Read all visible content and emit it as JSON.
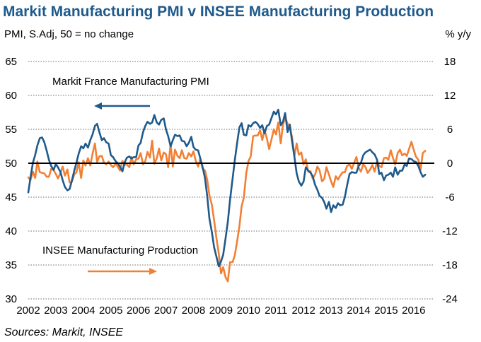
{
  "chart_data": {
    "type": "line",
    "title": "Markit Manufacturing PMI v INSEE Manufacturing Production",
    "left_axis_label": "PMI, S.Adj, 50 = no change",
    "right_axis_label": "% y/y",
    "source": "Sources: Markit, INSEE",
    "x_ticks": [
      "2002",
      "2003",
      "2004",
      "2005",
      "2006",
      "2007",
      "2008",
      "2009",
      "2010",
      "2011",
      "2012",
      "2013",
      "2014",
      "2015",
      "2016"
    ],
    "x_range": [
      2002.0,
      2016.75
    ],
    "y_left": {
      "range": [
        30,
        65
      ],
      "ticks": [
        "30",
        "35",
        "40",
        "45",
        "50",
        "55",
        "60",
        "65"
      ]
    },
    "y_right": {
      "range": [
        -24,
        18
      ],
      "ticks": [
        "-24",
        "-18",
        "-12",
        "-6",
        "0",
        "6",
        "12",
        "18"
      ]
    },
    "reference_line": {
      "axis": "left",
      "value": 50
    },
    "grid": "horizontal-dotted",
    "series": [
      {
        "name": "Markit France Manufacturing PMI",
        "axis": "left",
        "color": "#1f5a8c",
        "x": [
          2002.0,
          2002.08,
          2002.17,
          2002.25,
          2002.33,
          2002.42,
          2002.5,
          2002.58,
          2002.67,
          2002.75,
          2002.83,
          2002.92,
          2003.0,
          2003.08,
          2003.17,
          2003.25,
          2003.33,
          2003.42,
          2003.5,
          2003.58,
          2003.67,
          2003.75,
          2003.83,
          2003.92,
          2004.0,
          2004.08,
          2004.17,
          2004.25,
          2004.33,
          2004.42,
          2004.5,
          2004.58,
          2004.67,
          2004.75,
          2004.83,
          2004.92,
          2005.0,
          2005.08,
          2005.17,
          2005.25,
          2005.33,
          2005.42,
          2005.5,
          2005.58,
          2005.67,
          2005.75,
          2005.83,
          2005.92,
          2006.0,
          2006.08,
          2006.17,
          2006.25,
          2006.33,
          2006.42,
          2006.5,
          2006.58,
          2006.67,
          2006.75,
          2006.83,
          2006.92,
          2007.0,
          2007.08,
          2007.17,
          2007.25,
          2007.33,
          2007.42,
          2007.5,
          2007.58,
          2007.67,
          2007.75,
          2007.83,
          2007.92,
          2008.0,
          2008.08,
          2008.17,
          2008.25,
          2008.33,
          2008.42,
          2008.5,
          2008.58,
          2008.67,
          2008.75,
          2008.83,
          2008.92,
          2009.0,
          2009.08,
          2009.17,
          2009.25,
          2009.33,
          2009.42,
          2009.5,
          2009.58,
          2009.67,
          2009.75,
          2009.83,
          2009.92,
          2010.0,
          2010.08,
          2010.17,
          2010.25,
          2010.33,
          2010.42,
          2010.5,
          2010.58,
          2010.67,
          2010.75,
          2010.83,
          2010.92,
          2011.0,
          2011.08,
          2011.17,
          2011.25,
          2011.33,
          2011.42,
          2011.5,
          2011.58,
          2011.67,
          2011.75,
          2011.83,
          2011.92,
          2012.0,
          2012.08,
          2012.17,
          2012.25,
          2012.33,
          2012.42,
          2012.5,
          2012.58,
          2012.67,
          2012.75,
          2012.83,
          2012.92,
          2013.0,
          2013.08,
          2013.17,
          2013.25,
          2013.33,
          2013.42,
          2013.5,
          2013.58,
          2013.67,
          2013.75,
          2013.83,
          2013.92,
          2014.0,
          2014.08,
          2014.17,
          2014.25,
          2014.33,
          2014.42,
          2014.5,
          2014.58,
          2014.67,
          2014.75,
          2014.83,
          2014.92,
          2015.0,
          2015.08,
          2015.17,
          2015.25,
          2015.33,
          2015.42,
          2015.5,
          2015.58,
          2015.67,
          2015.75,
          2015.83,
          2015.92,
          2016.0,
          2016.08,
          2016.17,
          2016.25,
          2016.33,
          2016.42
        ],
        "values": [
          45.7,
          47.9,
          50.1,
          51.2,
          52.6,
          53.7,
          53.8,
          53.1,
          51.8,
          50.5,
          49.6,
          49.0,
          49.9,
          49.4,
          48.7,
          47.5,
          46.5,
          46.0,
          46.2,
          47.4,
          48.9,
          50.1,
          51.4,
          52.5,
          52.2,
          52.9,
          52.3,
          53.4,
          54.2,
          55.5,
          55.8,
          54.6,
          53.4,
          53.7,
          53.1,
          52.9,
          51.2,
          50.9,
          50.3,
          50.0,
          49.5,
          48.8,
          50.1,
          50.8,
          51.0,
          50.7,
          50.9,
          50.9,
          52.6,
          53.0,
          54.6,
          55.5,
          56.1,
          55.8,
          56.0,
          57.1,
          56.0,
          55.7,
          56.4,
          56.6,
          55.0,
          54.0,
          52.5,
          53.4,
          54.2,
          54.0,
          54.1,
          53.3,
          53.2,
          52.5,
          53.0,
          53.9,
          52.4,
          52.0,
          51.9,
          50.7,
          49.5,
          47.8,
          45.2,
          41.8,
          39.8,
          37.6,
          36.3,
          34.8,
          35.5,
          36.5,
          39.0,
          41.4,
          44.6,
          47.7,
          50.4,
          52.8,
          55.3,
          55.9,
          54.2,
          54.1,
          55.6,
          55.4,
          55.9,
          56.1,
          55.8,
          55.2,
          55.6,
          54.4,
          55.5,
          55.7,
          56.6,
          57.6,
          57.2,
          57.9,
          55.6,
          56.1,
          57.4,
          54.6,
          55.7,
          53.3,
          50.9,
          48.5,
          47.3,
          46.7,
          47.3,
          49.4,
          48.9,
          48.6,
          48.1,
          46.8,
          46.1,
          45.2,
          44.9,
          44.3,
          43.3,
          44.3,
          42.8,
          43.8,
          43.4,
          44.1,
          43.8,
          43.9,
          45.0,
          46.7,
          48.4,
          48.7,
          48.6,
          48.6,
          49.6,
          50.0,
          51.2,
          51.6,
          51.8,
          52.0,
          51.6,
          51.3,
          50.5,
          48.4,
          48.6,
          47.5,
          48.2,
          48.3,
          48.6,
          48.0,
          49.4,
          48.3,
          48.9,
          48.9,
          49.8,
          49.6,
          50.7,
          50.6,
          50.3,
          50.2,
          49.6,
          48.7,
          48.0,
          48.3
        ]
      },
      {
        "name": "INSEE Manufacturing Production",
        "axis": "right",
        "color": "#f28034",
        "x": [
          2002.0,
          2002.08,
          2002.17,
          2002.25,
          2002.33,
          2002.42,
          2002.5,
          2002.58,
          2002.67,
          2002.75,
          2002.83,
          2002.92,
          2003.0,
          2003.08,
          2003.17,
          2003.25,
          2003.33,
          2003.42,
          2003.5,
          2003.58,
          2003.67,
          2003.75,
          2003.83,
          2003.92,
          2004.0,
          2004.08,
          2004.17,
          2004.25,
          2004.33,
          2004.42,
          2004.5,
          2004.58,
          2004.67,
          2004.75,
          2004.83,
          2004.92,
          2005.0,
          2005.08,
          2005.17,
          2005.25,
          2005.33,
          2005.42,
          2005.5,
          2005.58,
          2005.67,
          2005.75,
          2005.83,
          2005.92,
          2006.0,
          2006.08,
          2006.17,
          2006.25,
          2006.33,
          2006.42,
          2006.5,
          2006.58,
          2006.67,
          2006.75,
          2006.83,
          2006.92,
          2007.0,
          2007.08,
          2007.17,
          2007.25,
          2007.33,
          2007.42,
          2007.5,
          2007.58,
          2007.67,
          2007.75,
          2007.83,
          2007.92,
          2008.0,
          2008.08,
          2008.17,
          2008.25,
          2008.33,
          2008.42,
          2008.5,
          2008.58,
          2008.67,
          2008.75,
          2008.83,
          2008.92,
          2009.0,
          2009.08,
          2009.17,
          2009.25,
          2009.33,
          2009.42,
          2009.5,
          2009.58,
          2009.67,
          2009.75,
          2009.83,
          2009.92,
          2010.0,
          2010.08,
          2010.17,
          2010.25,
          2010.33,
          2010.42,
          2010.5,
          2010.58,
          2010.67,
          2010.75,
          2010.83,
          2010.92,
          2011.0,
          2011.08,
          2011.17,
          2011.25,
          2011.33,
          2011.42,
          2011.5,
          2011.58,
          2011.67,
          2011.75,
          2011.83,
          2011.92,
          2012.0,
          2012.08,
          2012.17,
          2012.25,
          2012.33,
          2012.42,
          2012.5,
          2012.58,
          2012.67,
          2012.75,
          2012.83,
          2012.92,
          2013.0,
          2013.08,
          2013.17,
          2013.25,
          2013.33,
          2013.42,
          2013.5,
          2013.58,
          2013.67,
          2013.75,
          2013.83,
          2013.92,
          2014.0,
          2014.08,
          2014.17,
          2014.25,
          2014.33,
          2014.42,
          2014.5,
          2014.58,
          2014.67,
          2014.75,
          2014.83,
          2014.92,
          2015.0,
          2015.08,
          2015.17,
          2015.25,
          2015.33,
          2015.42,
          2015.5,
          2015.58,
          2015.67,
          2015.75,
          2015.83,
          2015.92,
          2016.0,
          2016.08,
          2016.17,
          2016.25,
          2016.33,
          2016.42
        ],
        "values": [
          -2.5,
          -3.0,
          -1.5,
          -2.6,
          0.3,
          -1.6,
          -1.7,
          -1.8,
          -2.4,
          -2.4,
          -1.0,
          -1.2,
          -1.9,
          -2.7,
          -1.7,
          -0.6,
          -2.2,
          -1.1,
          -3.4,
          -3.3,
          -2.0,
          -1.6,
          0.2,
          -2.6,
          0.5,
          -0.4,
          0.9,
          -0.4,
          1.6,
          3.5,
          0.2,
          1.2,
          1.3,
          0.1,
          -0.2,
          0.3,
          -0.3,
          -0.7,
          -0.1,
          -0.6,
          -1.3,
          0.4,
          -0.3,
          -0.2,
          -0.7,
          1.1,
          -0.2,
          0.7,
          0.8,
          1.8,
          -0.2,
          0.4,
          2.0,
          1.0,
          4.0,
          -0.1,
          0.9,
          2.6,
          0.5,
          1.9,
          1.6,
          -0.7,
          3.4,
          -0.6,
          2.4,
          1.3,
          0.9,
          2.3,
          0.9,
          0.8,
          1.8,
          1.2,
          2.1,
          0.5,
          -0.6,
          0.8,
          -0.9,
          -1.3,
          -2.9,
          -5.7,
          -7.4,
          -10.1,
          -13.1,
          -16.0,
          -19.5,
          -18.4,
          -20.2,
          -20.9,
          -17.5,
          -17.5,
          -16.3,
          -14.0,
          -11.1,
          -7.6,
          -6.1,
          -1.7,
          0.4,
          1.2,
          4.8,
          4.9,
          4.9,
          5.8,
          4.1,
          5.9,
          4.3,
          2.5,
          4.1,
          6.0,
          5.1,
          7.2,
          3.5,
          6.8,
          8.1,
          7.0,
          6.2,
          4.7,
          1.3,
          3.5,
          1.5,
          1.9,
          -0.2,
          0.7,
          -1.5,
          -1.4,
          -2.7,
          -2.0,
          -0.6,
          -1.2,
          -3.2,
          -2.8,
          -0.7,
          -2.0,
          -3.2,
          -4.2,
          -2.3,
          -2.9,
          -2.2,
          -1.6,
          -1.6,
          -0.5,
          -0.2,
          -1.0,
          0.0,
          1.1,
          -0.8,
          -1.5,
          -0.2,
          -0.7,
          -1.7,
          -1.1,
          -0.3,
          -1.5,
          0.4,
          -0.5,
          -0.7,
          0.9,
          1.0,
          0.6,
          2.3,
          0.9,
          -0.2,
          1.8,
          2.4,
          1.4,
          1.7,
          1.3,
          2.5,
          3.8,
          2.4,
          1.2,
          0.6,
          -1.2,
          1.8,
          2.2
        ]
      }
    ],
    "annotations": [
      {
        "text": "Markit France Manufacturing PMI",
        "arrow": "left",
        "color": "#1f5a8c"
      },
      {
        "text": "INSEE Manufacturing Production",
        "arrow": "right",
        "color": "#f28034"
      }
    ]
  }
}
